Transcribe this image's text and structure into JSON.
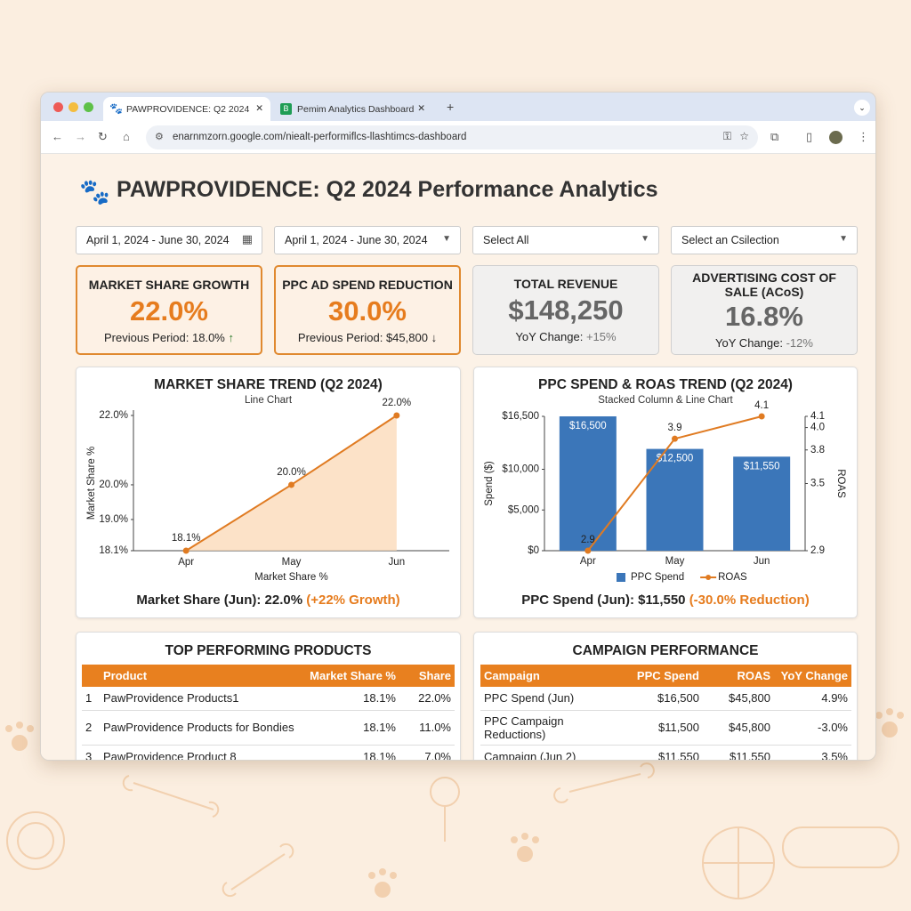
{
  "browser": {
    "tabs": [
      "PAWPROVIDENCE: Q2 2024",
      "Pemim Analytics Dashboard"
    ],
    "url": "enarnmzorn.google.com/niealt-performiflcs-llashtimcs-dashboard"
  },
  "header": {
    "title": "PAWPROVIDENCE: Q2 2024 Performance Analytics"
  },
  "filters": [
    "April 1, 2024 - June 30, 2024",
    "April 1, 2024 - June 30, 2024",
    "Select All",
    "Select an Csilection"
  ],
  "kpis": [
    {
      "title": "MARKET SHARE GROWTH",
      "value": "22.0%",
      "note_label": "Previous Period:",
      "note_value": "18.0%"
    },
    {
      "title": "PPC AD SPEND REDUCTION",
      "value": "30.0%",
      "note_label": "Previous Period:",
      "note_value": "$45,800"
    },
    {
      "title": "TOTAL REVENUE",
      "value": "$148,250",
      "note_label": "YoY Change:",
      "note_value": "+15%"
    },
    {
      "title": "ADVERTISING COST OF SALE (ACoS)",
      "value": "16.8%",
      "note_label": "YoY Change:",
      "note_value": "-12%"
    }
  ],
  "chart_data": [
    {
      "type": "line",
      "title": "MARKET SHARE TREND (Q2 2024)",
      "subtitle": "Line Chart",
      "x_label": "Market Share %",
      "y_label": "Market Share %",
      "categories": [
        "Apr",
        "May",
        "Jun"
      ],
      "values": [
        18.1,
        20.0,
        22.0
      ],
      "value_labels": [
        "18.1%",
        "20.0%",
        "22.0%"
      ],
      "color": "#e07b22",
      "area_color": "#fbd8b6",
      "ylim": [
        18.1,
        22.0
      ],
      "yticks": [
        {
          "value": 18.1,
          "label": "18.1%"
        },
        {
          "value": 19.0,
          "label": "19.0%"
        },
        {
          "value": 20.0,
          "label": "20.0%"
        },
        {
          "value": 22.0,
          "label": "22.0%"
        }
      ],
      "grid": false,
      "footer": "Market Share (Jun): 22.0%",
      "footer_highlight": "(+22% Growth)"
    },
    {
      "type": "combo",
      "title": "PPC SPEND & ROAS TREND (Q2 2024)",
      "subtitle": "Stacked Column & Line Chart",
      "y_label": "Spend ($)",
      "y2_label": "ROAS",
      "categories": [
        "Apr",
        "May",
        "Jun"
      ],
      "series": [
        {
          "name": "PPC Spend",
          "color": "#3b76b9",
          "values": [
            16500,
            12500,
            11550
          ],
          "value_labels": [
            "$16,500",
            "$12,500",
            "$11,550"
          ]
        },
        {
          "name": "ROAS",
          "color": "#e07b22",
          "axis": "y2",
          "values": [
            2.9,
            3.9,
            4.1
          ]
        }
      ],
      "ylim": [
        0,
        16500
      ],
      "yticks": [
        {
          "value": 0,
          "label": "$0"
        },
        {
          "value": 5000,
          "label": "$5,000"
        },
        {
          "value": 10000,
          "label": "$10,000"
        },
        {
          "value": 16500,
          "label": "$16,500"
        }
      ],
      "y2lim": [
        2.9,
        4.1
      ],
      "y2ticks": [
        2.9,
        3.5,
        3.8,
        {
          "value": 4.0,
          "label": "4.0"
        },
        4.1
      ],
      "grid": false,
      "legend": "bottom",
      "footer": "PPC Spend (Jun): $11,550",
      "footer_highlight": "(-30.0% Reduction)"
    }
  ],
  "tables": [
    {
      "title": "TOP PERFORMING PRODUCTS",
      "columns": [
        "Product",
        "Market Share %",
        "Share"
      ],
      "rows": [
        [
          "1",
          "PawProvidence Products1",
          "18.1%",
          "22.0%"
        ],
        [
          "2",
          "PawProvidence Products for Bondies",
          "18.1%",
          "11.0%"
        ],
        [
          "3",
          "PawProvidence Product 8",
          "18.1%",
          "7.0%"
        ]
      ]
    },
    {
      "title": "CAMPAIGN PERFORMANCE",
      "columns": [
        "Campaign",
        "PPC Spend",
        "ROAS",
        "YoY Change"
      ],
      "rows": [
        [
          "PPC Spend (Jun)",
          "$16,500",
          "$45,800",
          "4.9%"
        ],
        [
          "PPC Campaign Reductions)",
          "$11,500",
          "$45,800",
          "-3.0%"
        ],
        [
          "Campaign (Jun 2)",
          "$11,550",
          "$11,550",
          "3.5%"
        ]
      ]
    }
  ]
}
